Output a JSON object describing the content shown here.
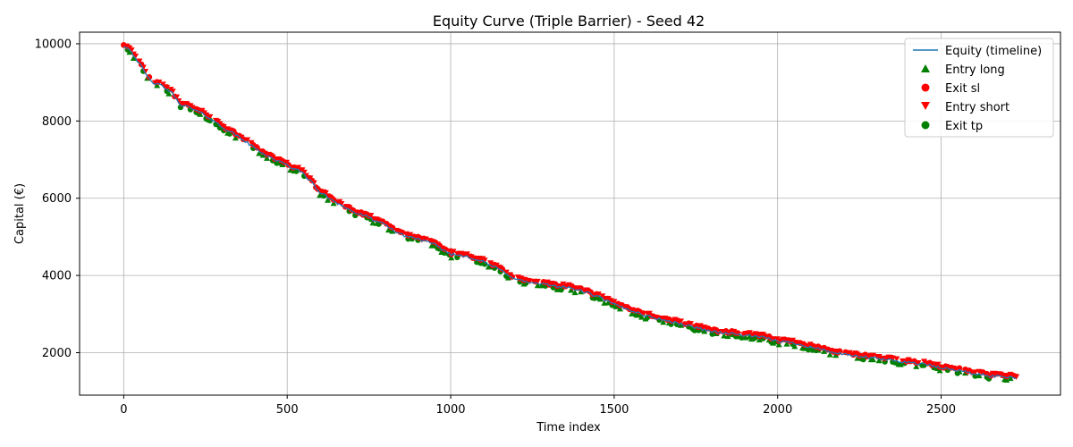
{
  "chart_data": {
    "type": "line",
    "title": "Equity Curve (Triple Barrier) - Seed 42",
    "xlabel": "Time index",
    "ylabel": "Capital (€)",
    "xlim": [
      -135,
      2865
    ],
    "ylim": [
      900,
      10300
    ],
    "xticks": [
      0,
      500,
      1000,
      1500,
      2000,
      2500
    ],
    "yticks": [
      2000,
      4000,
      6000,
      8000,
      10000
    ],
    "grid": true,
    "legend_position": "top-right",
    "equity_anchor_points": {
      "x": [
        0,
        20,
        50,
        80,
        100,
        120,
        150,
        170,
        200,
        250,
        300,
        350,
        400,
        450,
        500,
        550,
        600,
        650,
        700,
        750,
        800,
        850,
        900,
        950,
        1000,
        1050,
        1100,
        1150,
        1200,
        1250,
        1300,
        1350,
        1400,
        1450,
        1500,
        1550,
        1600,
        1650,
        1700,
        1750,
        1800,
        1850,
        1900,
        1950,
        2000,
        2050,
        2100,
        2150,
        2200,
        2250,
        2300,
        2350,
        2400,
        2450,
        2500,
        2550,
        2600,
        2650,
        2700,
        2730
      ],
      "y": [
        9950,
        9850,
        9450,
        9050,
        8950,
        8900,
        8700,
        8450,
        8350,
        8150,
        7850,
        7600,
        7300,
        7050,
        6850,
        6650,
        6150,
        5900,
        5650,
        5500,
        5300,
        5050,
        4950,
        4800,
        4550,
        4500,
        4350,
        4150,
        3900,
        3800,
        3750,
        3700,
        3600,
        3450,
        3250,
        3100,
        2950,
        2850,
        2750,
        2650,
        2550,
        2500,
        2450,
        2400,
        2300,
        2250,
        2150,
        2050,
        1950,
        1900,
        1850,
        1800,
        1750,
        1700,
        1600,
        1550,
        1450,
        1400,
        1380,
        1360
      ]
    },
    "series": [
      {
        "name": "Equity (timeline)",
        "kind": "line",
        "color": "#1f77b4"
      },
      {
        "name": "Entry long",
        "kind": "marker",
        "marker": "triangle-up",
        "color": "#008000"
      },
      {
        "name": "Exit sl",
        "kind": "marker",
        "marker": "circle",
        "color": "#ff0000"
      },
      {
        "name": "Entry short",
        "kind": "marker",
        "marker": "triangle-down",
        "color": "#ff0000"
      },
      {
        "name": "Exit tp",
        "kind": "marker",
        "marker": "circle",
        "color": "#008000"
      }
    ]
  }
}
